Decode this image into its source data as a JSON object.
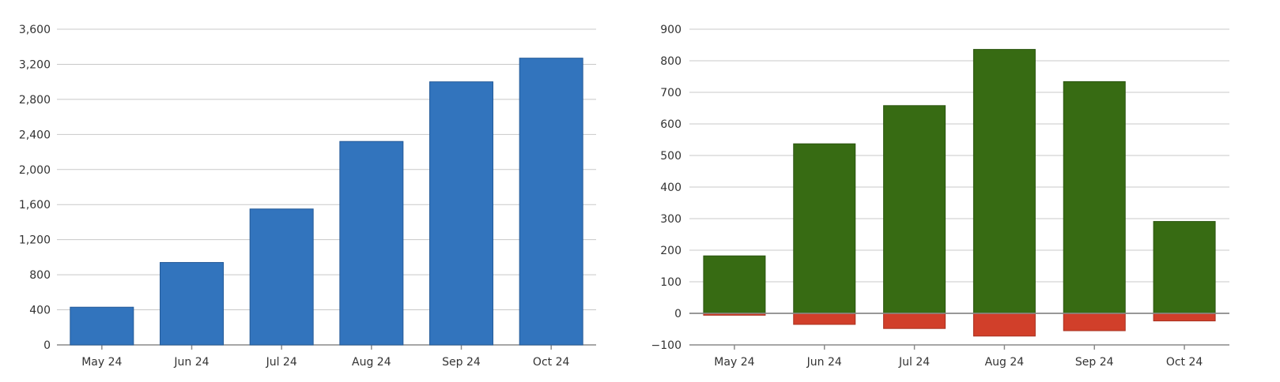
{
  "chart_data": [
    {
      "type": "bar",
      "categories": [
        "May 24",
        "Jun 24",
        "Jul 24",
        "Aug 24",
        "Sep 24",
        "Oct 24"
      ],
      "values": [
        430,
        940,
        1550,
        2320,
        3000,
        3270
      ],
      "ylim": [
        0,
        3600
      ],
      "yticks": [
        "0",
        "400",
        "800",
        "1,200",
        "1,600",
        "2,000",
        "2,400",
        "2,800",
        "3,200",
        "3,600"
      ],
      "ytick_values": [
        0,
        400,
        800,
        1200,
        1600,
        2000,
        2400,
        2800,
        3200,
        3600
      ],
      "grid": true,
      "color": "#3274bd"
    },
    {
      "type": "bar",
      "stacked": true,
      "categories": [
        "May 24",
        "Jun 24",
        "Jul 24",
        "Aug 24",
        "Sep 24",
        "Oct 24"
      ],
      "series": [
        {
          "values": [
            182,
            537,
            658,
            836,
            734,
            291
          ],
          "color": "#376b13"
        },
        {
          "values": [
            -6,
            -35,
            -48,
            -72,
            -55,
            -24
          ],
          "color": "#d13f2a"
        }
      ],
      "ylim": [
        -100,
        900
      ],
      "yticks": [
        "−100",
        "0",
        "100",
        "200",
        "300",
        "400",
        "500",
        "600",
        "700",
        "800",
        "900"
      ],
      "ytick_values": [
        -100,
        0,
        100,
        200,
        300,
        400,
        500,
        600,
        700,
        800,
        900
      ],
      "grid": true
    }
  ]
}
